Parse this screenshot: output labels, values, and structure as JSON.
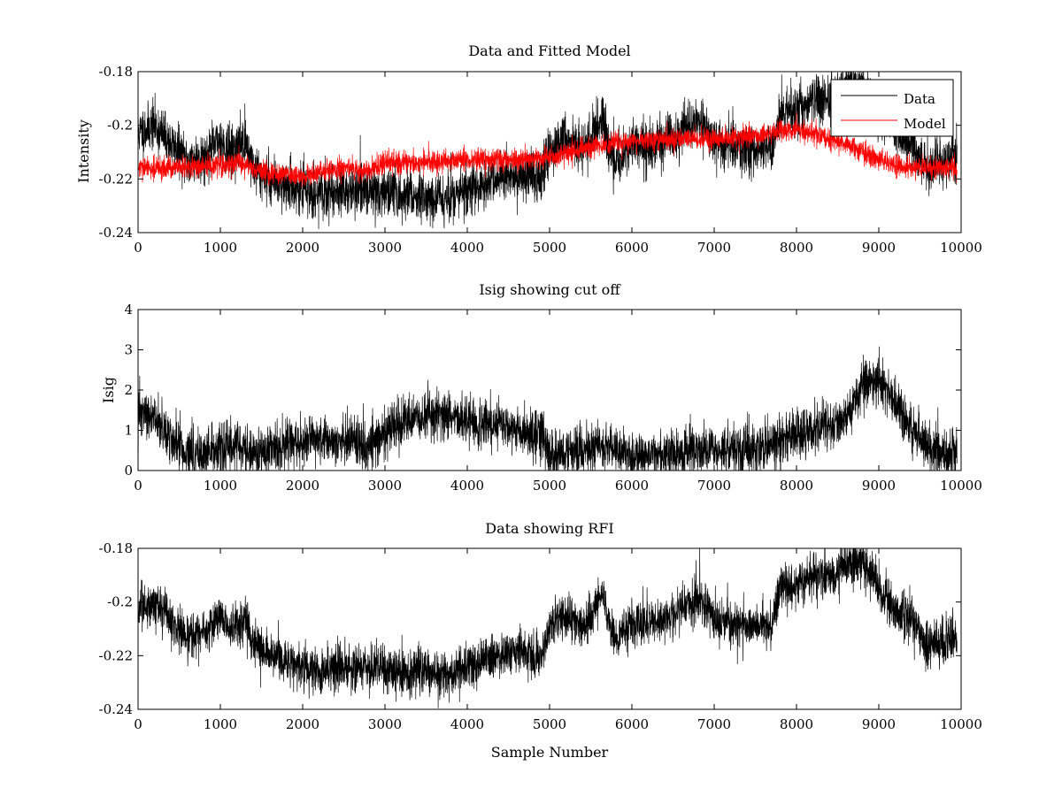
{
  "colors": {
    "data": "#000000",
    "model": "#ff0000",
    "background": "#ffffff",
    "axes": "#000000"
  },
  "chart_data": [
    {
      "type": "line",
      "title": "Data and Fitted Model",
      "xlabel": "",
      "ylabel": "Intensity",
      "xlim": [
        0,
        10000
      ],
      "ylim": [
        -0.24,
        -0.18
      ],
      "xticks": [
        0,
        1000,
        2000,
        3000,
        4000,
        5000,
        6000,
        7000,
        8000,
        9000,
        10000
      ],
      "xtick_labels": [
        "0",
        "1000",
        "2000",
        "3000",
        "4000",
        "5000",
        "6000",
        "7000",
        "8000",
        "9000",
        "10000"
      ],
      "yticks": [
        -0.24,
        -0.22,
        -0.2,
        -0.18
      ],
      "ytick_labels": [
        "-0.24",
        "-0.22",
        "-0.2",
        "-0.18"
      ],
      "legend": {
        "position": "top-right",
        "entries": [
          "Data",
          "Model"
        ]
      },
      "series": [
        {
          "name": "Data",
          "color": "#000000",
          "noise": 0.0045,
          "seed": 11,
          "x": [
            0,
            200,
            400,
            600,
            800,
            1000,
            1100,
            1200,
            1300,
            1400,
            1600,
            1800,
            2000,
            2200,
            2400,
            2600,
            2800,
            3000,
            3200,
            3400,
            3600,
            3800,
            4000,
            4200,
            4400,
            4600,
            4800,
            4900,
            5000,
            5200,
            5400,
            5500,
            5600,
            5650,
            5700,
            5800,
            6000,
            6200,
            6400,
            6600,
            6800,
            7000,
            7200,
            7400,
            7600,
            7700,
            7800,
            7900,
            8000,
            8200,
            8400,
            8600,
            8800,
            9000,
            9200,
            9400,
            9600,
            9700,
            9800,
            9900,
            9950
          ],
          "values": [
            -0.203,
            -0.2,
            -0.207,
            -0.213,
            -0.212,
            -0.205,
            -0.21,
            -0.208,
            -0.205,
            -0.216,
            -0.22,
            -0.222,
            -0.224,
            -0.226,
            -0.224,
            -0.225,
            -0.224,
            -0.225,
            -0.226,
            -0.226,
            -0.227,
            -0.227,
            -0.224,
            -0.222,
            -0.22,
            -0.219,
            -0.218,
            -0.222,
            -0.208,
            -0.205,
            -0.209,
            -0.205,
            -0.2,
            -0.196,
            -0.205,
            -0.214,
            -0.207,
            -0.208,
            -0.206,
            -0.203,
            -0.198,
            -0.206,
            -0.208,
            -0.209,
            -0.209,
            -0.208,
            -0.196,
            -0.194,
            -0.194,
            -0.19,
            -0.191,
            -0.185,
            -0.185,
            -0.195,
            -0.203,
            -0.206,
            -0.218,
            -0.214,
            -0.214,
            -0.212,
            -0.215
          ]
        },
        {
          "name": "Model",
          "color": "#ff0000",
          "noise": 0.002,
          "seed": 29,
          "x": [
            0,
            500,
            1000,
            1200,
            1400,
            1600,
            1800,
            2000,
            2200,
            2400,
            2600,
            2800,
            3000,
            3200,
            3400,
            3600,
            3800,
            4000,
            4500,
            5000,
            5500,
            6000,
            6500,
            7000,
            7500,
            7800,
            8000,
            8200,
            8500,
            8800,
            9000,
            9200,
            9400,
            9600,
            9800,
            9950
          ],
          "values": [
            -0.216,
            -0.216,
            -0.215,
            -0.214,
            -0.216,
            -0.218,
            -0.218,
            -0.219,
            -0.218,
            -0.216,
            -0.216,
            -0.217,
            -0.214,
            -0.214,
            -0.214,
            -0.214,
            -0.213,
            -0.213,
            -0.213,
            -0.212,
            -0.208,
            -0.206,
            -0.205,
            -0.205,
            -0.204,
            -0.202,
            -0.202,
            -0.203,
            -0.206,
            -0.21,
            -0.213,
            -0.215,
            -0.216,
            -0.216,
            -0.216,
            -0.216
          ]
        }
      ],
      "annotations": []
    },
    {
      "type": "line",
      "title": "Isig showing cut off",
      "xlabel": "",
      "ylabel": "Isig",
      "xlim": [
        0,
        10000
      ],
      "ylim": [
        0,
        4
      ],
      "clip_min": 0,
      "xticks": [
        0,
        1000,
        2000,
        3000,
        4000,
        5000,
        6000,
        7000,
        8000,
        9000,
        10000
      ],
      "xtick_labels": [
        "0",
        "1000",
        "2000",
        "3000",
        "4000",
        "5000",
        "6000",
        "7000",
        "8000",
        "9000",
        "10000"
      ],
      "yticks": [
        0,
        1,
        2,
        3,
        4
      ],
      "ytick_labels": [
        "0",
        "1",
        "2",
        "3",
        "4"
      ],
      "series": [
        {
          "name": "Isig",
          "color": "#000000",
          "noise": 0.3,
          "seed": 47,
          "x": [
            0,
            200,
            400,
            600,
            800,
            1000,
            1200,
            1400,
            1600,
            1800,
            2000,
            2200,
            2400,
            2600,
            2800,
            3000,
            3200,
            3400,
            3600,
            3800,
            4000,
            4200,
            4400,
            4600,
            4800,
            4900,
            5000,
            5200,
            5400,
            5600,
            5800,
            6000,
            6200,
            6400,
            6600,
            6800,
            7000,
            7200,
            7400,
            7600,
            7800,
            8000,
            8200,
            8400,
            8600,
            8800,
            9000,
            9200,
            9400,
            9600,
            9800,
            9950
          ],
          "values": [
            1.4,
            1.3,
            0.8,
            0.4,
            0.4,
            0.5,
            0.6,
            0.4,
            0.5,
            0.6,
            0.7,
            0.8,
            0.7,
            0.8,
            0.6,
            1.0,
            1.2,
            1.3,
            1.4,
            1.3,
            1.2,
            1.2,
            1.1,
            1.0,
            0.9,
            1.0,
            0.4,
            0.4,
            0.5,
            0.6,
            0.5,
            0.4,
            0.4,
            0.4,
            0.5,
            0.5,
            0.5,
            0.5,
            0.5,
            0.6,
            0.7,
            0.9,
            1.0,
            1.1,
            1.3,
            2.1,
            2.3,
            1.7,
            1.0,
            0.6,
            0.4,
            0.4
          ]
        }
      ],
      "annotations": []
    },
    {
      "type": "line",
      "title": "Data showing RFI",
      "xlabel": "Sample Number",
      "ylabel": "",
      "xlim": [
        0,
        10000
      ],
      "ylim": [
        -0.24,
        -0.18
      ],
      "xticks": [
        0,
        1000,
        2000,
        3000,
        4000,
        5000,
        6000,
        7000,
        8000,
        9000,
        10000
      ],
      "xtick_labels": [
        "0",
        "1000",
        "2000",
        "3000",
        "4000",
        "5000",
        "6000",
        "7000",
        "8000",
        "9000",
        "10000"
      ],
      "yticks": [
        -0.24,
        -0.22,
        -0.2,
        -0.18
      ],
      "ytick_labels": [
        "-0.24",
        "-0.22",
        "-0.2",
        "-0.18"
      ],
      "series": [
        {
          "name": "Data",
          "color": "#000000",
          "noise": 0.0042,
          "seed": 83,
          "x": [
            0,
            200,
            400,
            600,
            800,
            1000,
            1100,
            1200,
            1300,
            1400,
            1600,
            1800,
            2000,
            2200,
            2400,
            2600,
            2800,
            3000,
            3200,
            3400,
            3600,
            3800,
            4000,
            4200,
            4400,
            4600,
            4800,
            4900,
            5000,
            5200,
            5400,
            5500,
            5600,
            5650,
            5700,
            5800,
            6000,
            6200,
            6400,
            6600,
            6800,
            7000,
            7200,
            7400,
            7600,
            7700,
            7800,
            7900,
            8000,
            8200,
            8400,
            8600,
            8800,
            9000,
            9200,
            9400,
            9600,
            9700,
            9800,
            9900,
            9950
          ],
          "values": [
            -0.203,
            -0.2,
            -0.207,
            -0.213,
            -0.212,
            -0.205,
            -0.21,
            -0.208,
            -0.205,
            -0.216,
            -0.22,
            -0.222,
            -0.224,
            -0.226,
            -0.224,
            -0.225,
            -0.224,
            -0.225,
            -0.226,
            -0.226,
            -0.227,
            -0.227,
            -0.224,
            -0.222,
            -0.22,
            -0.219,
            -0.218,
            -0.222,
            -0.208,
            -0.205,
            -0.209,
            -0.205,
            -0.2,
            -0.196,
            -0.205,
            -0.214,
            -0.207,
            -0.208,
            -0.206,
            -0.203,
            -0.198,
            -0.206,
            -0.208,
            -0.209,
            -0.209,
            -0.208,
            -0.196,
            -0.194,
            -0.194,
            -0.19,
            -0.191,
            -0.185,
            -0.185,
            -0.195,
            -0.203,
            -0.206,
            -0.218,
            -0.214,
            -0.214,
            -0.212,
            -0.215
          ]
        }
      ],
      "annotations": []
    }
  ]
}
